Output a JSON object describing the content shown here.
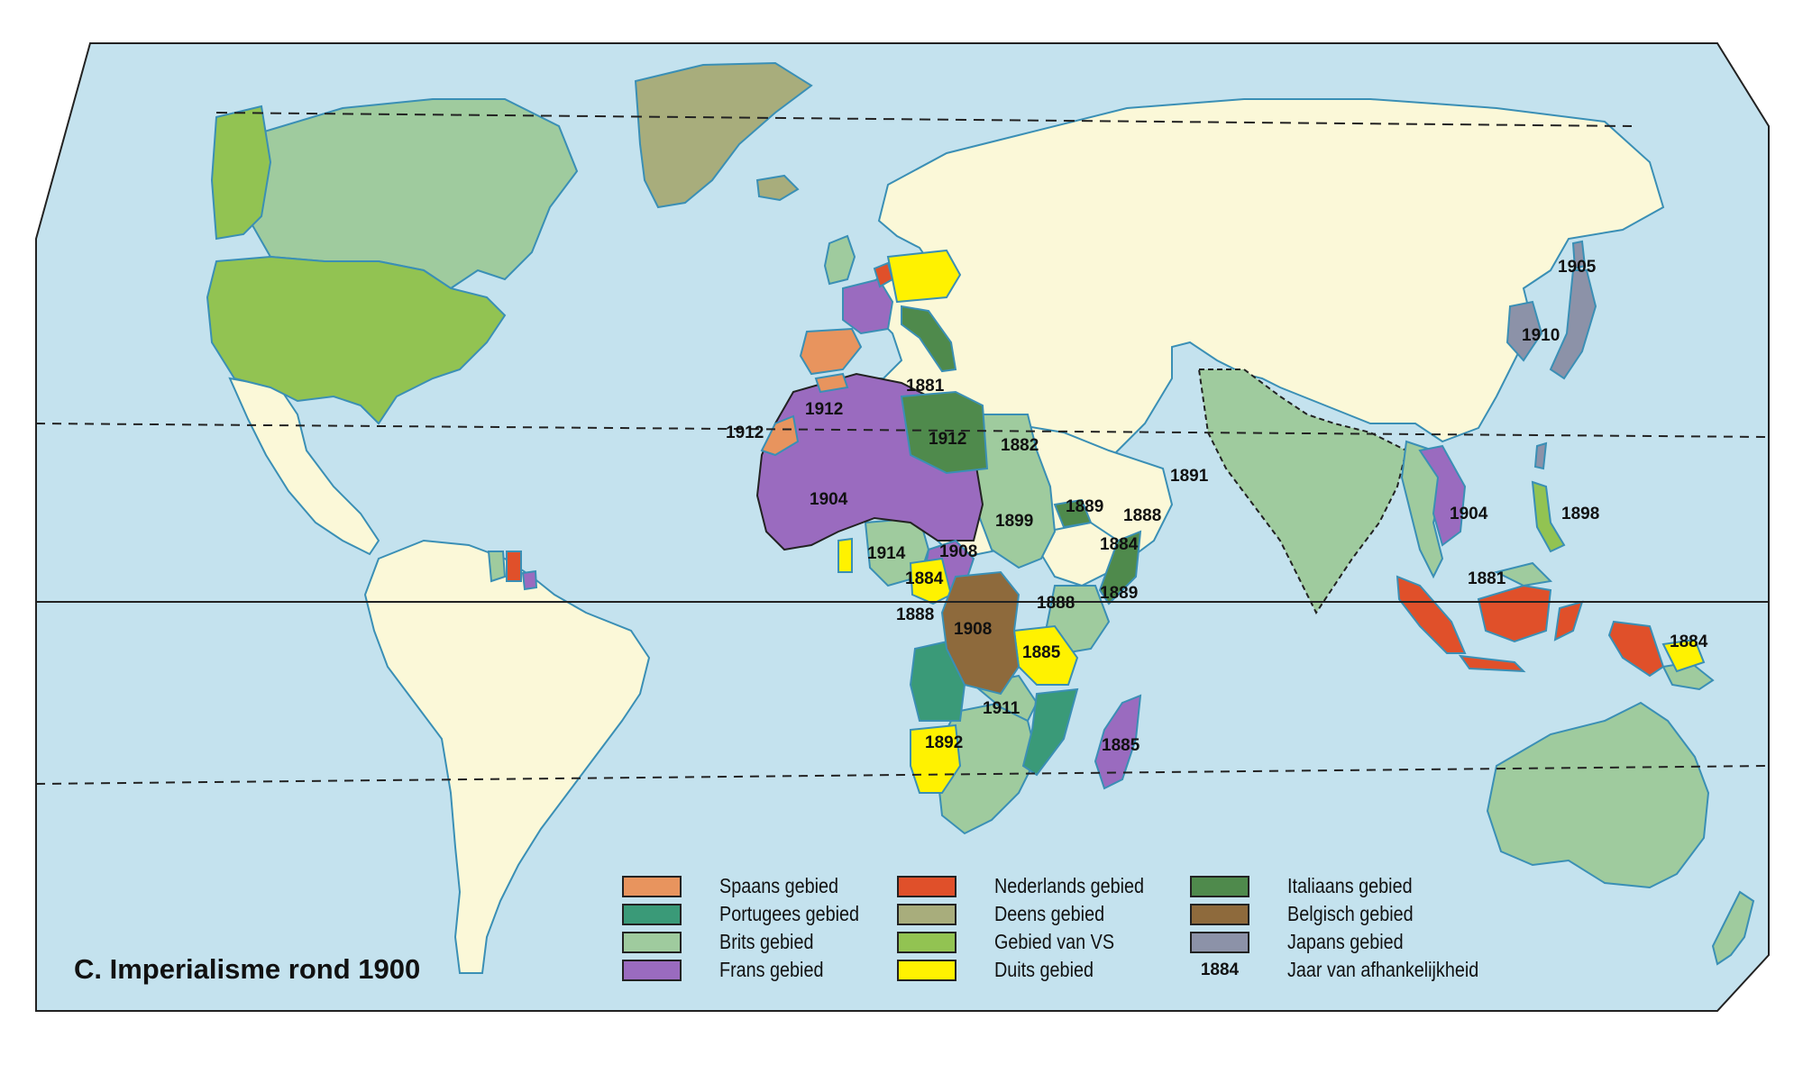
{
  "title": "C.  Imperialisme rond 1900",
  "colors": {
    "ocean": "#c4e2ee",
    "land_other": "#fbf8d8",
    "spanish": "#e8945e",
    "portuguese": "#3a9a78",
    "british": "#9fcb9e",
    "french": "#9a6bbf",
    "dutch": "#e0502a",
    "danish": "#a8ad7c",
    "usa": "#92c352",
    "german": "#fff200",
    "italian": "#4f8a4c",
    "belgian": "#8e6a3c",
    "japanese": "#8c92a8"
  },
  "legend": [
    {
      "key": "spanish",
      "label": "Spaans gebied"
    },
    {
      "key": "portuguese",
      "label": "Portugees gebied"
    },
    {
      "key": "british",
      "label": "Brits gebied"
    },
    {
      "key": "french",
      "label": "Frans gebied"
    },
    {
      "key": "dutch",
      "label": "Nederlands gebied"
    },
    {
      "key": "danish",
      "label": "Deens gebied"
    },
    {
      "key": "usa",
      "label": "Gebied van VS"
    },
    {
      "key": "german",
      "label": "Duits gebied"
    },
    {
      "key": "italian",
      "label": "Italiaans gebied"
    },
    {
      "key": "belgian",
      "label": "Belgisch gebied"
    },
    {
      "key": "japanese",
      "label": "Japans gebied"
    },
    {
      "key": "year",
      "sample": "1884",
      "label": "Jaar van afhankelijkheid"
    }
  ],
  "year_labels": [
    "1905",
    "1910",
    "1881",
    "1912",
    "1912",
    "1912",
    "1882",
    "1891",
    "1904",
    "1899",
    "1889",
    "1888",
    "1898",
    "1884",
    "1904",
    "1914",
    "1908",
    "1884",
    "1888",
    "1889",
    "1881",
    "1888",
    "1908",
    "1885",
    "1911",
    "1892",
    "1885",
    "1884"
  ]
}
